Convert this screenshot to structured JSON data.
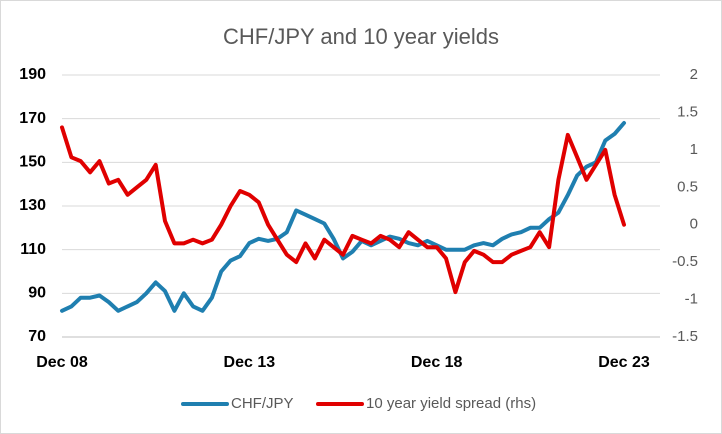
{
  "chart_data": {
    "type": "line",
    "title": "CHF/JPY and 10 year yields",
    "categories": [
      "Dec 08",
      null,
      null,
      null,
      null,
      null,
      null,
      null,
      null,
      null,
      null,
      null,
      null,
      null,
      null,
      null,
      null,
      null,
      null,
      null,
      "Dec 13",
      null,
      null,
      null,
      null,
      null,
      null,
      null,
      null,
      null,
      null,
      null,
      null,
      null,
      null,
      null,
      null,
      null,
      null,
      null,
      "Dec 18",
      null,
      null,
      null,
      null,
      null,
      null,
      null,
      null,
      null,
      null,
      null,
      null,
      null,
      null,
      null,
      null,
      null,
      null,
      null,
      "Dec 23"
    ],
    "series": [
      {
        "name": "CHF/JPY",
        "color": "#1f7fb0",
        "values": [
          82,
          84,
          88,
          88,
          89,
          86,
          82,
          84,
          86,
          90,
          95,
          91,
          82,
          90,
          84,
          82,
          88,
          100,
          105,
          107,
          113,
          115,
          114,
          115,
          118,
          128,
          126,
          124,
          122,
          115,
          106,
          109,
          114,
          112,
          114,
          116,
          115,
          113,
          112,
          114,
          112,
          110,
          110,
          110,
          112,
          113,
          112,
          115,
          117,
          118,
          120,
          120,
          124,
          127,
          135,
          144,
          148,
          150,
          160,
          163,
          168
        ]
      },
      {
        "name": "10 year yield spread (rhs)",
        "color": "#e00000",
        "axis": "y2",
        "values": [
          1.3,
          0.9,
          0.85,
          0.7,
          0.85,
          0.55,
          0.6,
          0.4,
          0.5,
          0.6,
          0.8,
          0.05,
          -0.25,
          -0.25,
          -0.2,
          -0.25,
          -0.2,
          0.0,
          0.25,
          0.45,
          0.4,
          0.3,
          0.0,
          -0.2,
          -0.4,
          -0.5,
          -0.25,
          -0.45,
          -0.2,
          -0.3,
          -0.4,
          -0.15,
          -0.2,
          -0.25,
          -0.15,
          -0.2,
          -0.3,
          -0.1,
          -0.2,
          -0.3,
          -0.3,
          -0.45,
          -0.9,
          -0.5,
          -0.35,
          -0.4,
          -0.5,
          -0.5,
          -0.4,
          -0.35,
          -0.3,
          -0.1,
          -0.3,
          0.6,
          1.2,
          0.9,
          0.6,
          0.8,
          1.0,
          0.4,
          0.0
        ]
      }
    ],
    "ylim": [
      70,
      190
    ],
    "yticks": [
      70,
      90,
      110,
      130,
      150,
      170,
      190
    ],
    "y2lim": [
      -1.5,
      2
    ],
    "y2ticks": [
      -1.5,
      -1,
      -0.5,
      0,
      0.5,
      1,
      1.5,
      2
    ],
    "grid": true,
    "legend": "bottom"
  }
}
